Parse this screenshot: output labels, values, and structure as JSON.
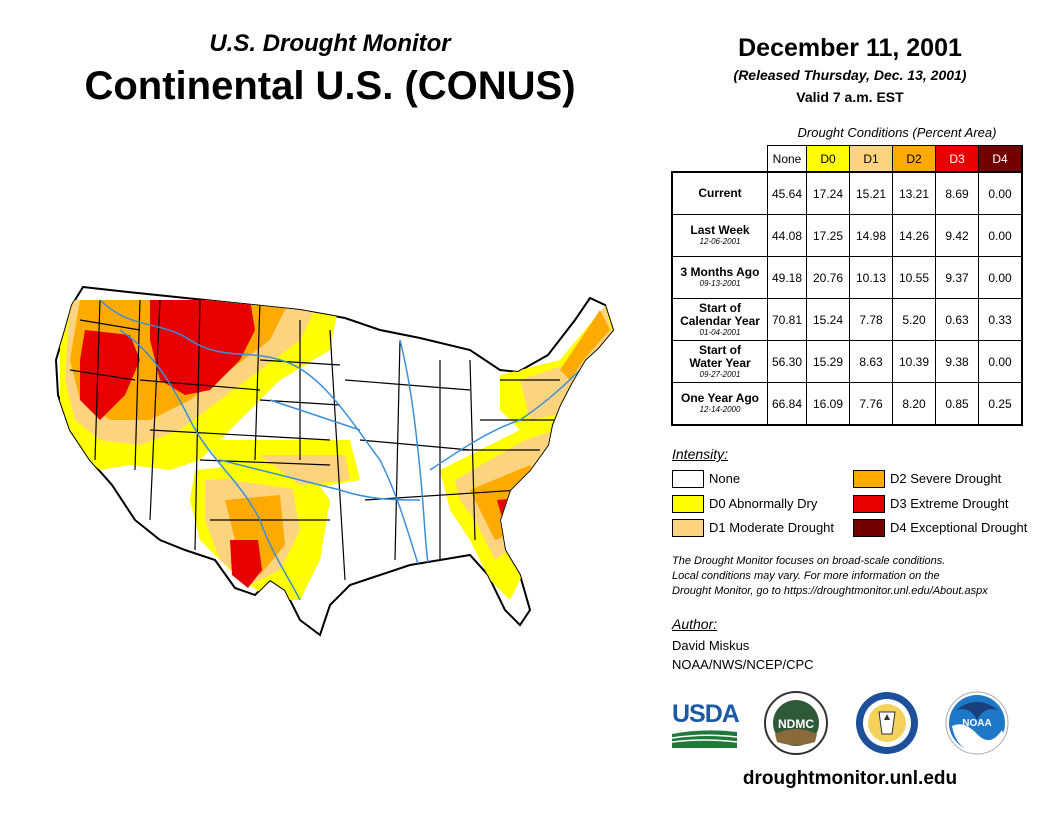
{
  "header": {
    "subtitle": "U.S. Drought Monitor",
    "title": "Continental U.S. (CONUS)",
    "date": "December 11, 2001",
    "released": "(Released Thursday, Dec. 13, 2001)",
    "valid": "Valid 7 a.m. EST"
  },
  "table": {
    "caption": "Drought Conditions (Percent Area)",
    "columns": [
      "None",
      "D0",
      "D1",
      "D2",
      "D3",
      "D4"
    ],
    "rows": [
      {
        "label": "Current",
        "label2": "",
        "label3": "",
        "date": "",
        "values": [
          "45.64",
          "17.24",
          "15.21",
          "13.21",
          "8.69",
          "0.00"
        ]
      },
      {
        "label": "Last Week",
        "label2": "",
        "label3": "",
        "date": "12-06-2001",
        "values": [
          "44.08",
          "17.25",
          "14.98",
          "14.26",
          "9.42",
          "0.00"
        ]
      },
      {
        "label": "3 Months Ago",
        "label2": "",
        "label3": "",
        "date": "09-13-2001",
        "values": [
          "49.18",
          "20.76",
          "10.13",
          "10.55",
          "9.37",
          "0.00"
        ]
      },
      {
        "label": "Start of",
        "label2": "Calendar Year",
        "label3": "",
        "date": "01-04-2001",
        "values": [
          "70.81",
          "15.24",
          "7.78",
          "5.20",
          "0.63",
          "0.33"
        ]
      },
      {
        "label": "Start of",
        "label2": "Water Year",
        "label3": "",
        "date": "09-27-2001",
        "values": [
          "56.30",
          "15.29",
          "8.63",
          "10.39",
          "9.38",
          "0.00"
        ]
      },
      {
        "label": "One Year Ago",
        "label2": "",
        "label3": "",
        "date": "12-14-2000",
        "values": [
          "66.84",
          "16.09",
          "7.76",
          "8.20",
          "0.85",
          "0.25"
        ]
      }
    ]
  },
  "legend": {
    "title": "Intensity:",
    "items": [
      {
        "label": "None",
        "color": "#ffffff"
      },
      {
        "label": "D0 Abnormally Dry",
        "color": "#ffff00"
      },
      {
        "label": "D1 Moderate Drought",
        "color": "#fcd37f"
      },
      {
        "label": "D2 Severe Drought",
        "color": "#ffaa00"
      },
      {
        "label": "D3 Extreme Drought",
        "color": "#e60000"
      },
      {
        "label": "D4 Exceptional Drought",
        "color": "#730000"
      }
    ]
  },
  "note": {
    "line1": "The Drought Monitor focuses on broad-scale conditions.",
    "line2": "Local conditions may vary. For more information on the",
    "line3": "Drought Monitor, go to https://droughtmonitor.unl.edu/About.aspx"
  },
  "author": {
    "title": "Author:",
    "name": "David Miskus",
    "org": "NOAA/NWS/NCEP/CPC"
  },
  "logos": {
    "usda": "USDA",
    "ndmc": "NDMC",
    "noaa": "NOAA"
  },
  "footer": {
    "site": "droughtmonitor.unl.edu"
  },
  "colors": {
    "none": "#ffffff",
    "d0": "#ffff00",
    "d1": "#fcd37f",
    "d2": "#ffaa00",
    "d3": "#e60000",
    "d4": "#730000",
    "river": "#3a8fd8"
  }
}
